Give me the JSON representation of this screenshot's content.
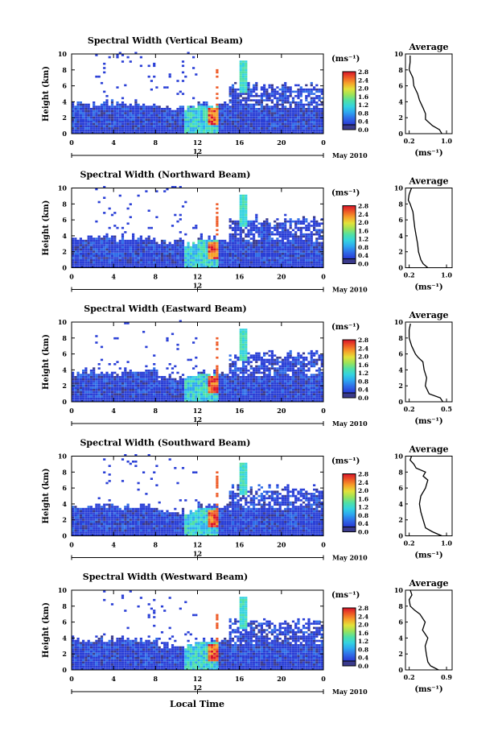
{
  "figure": {
    "xlabel": "Local Time",
    "date_label": "May 2010",
    "time_ticks": [
      "0",
      "4",
      "8",
      "12",
      "16",
      "20",
      "0"
    ],
    "day_label": "12",
    "height_ticks": [
      "0",
      "2",
      "4",
      "6",
      "8",
      "10"
    ],
    "ylabel": "Height (km)",
    "colorbar_unit": "(ms⁻¹)",
    "colorbar_ticks": [
      "0.0",
      "0.4",
      "0.8",
      "1.2",
      "1.6",
      "2.0",
      "2.4",
      "2.8"
    ],
    "avg_title": "Average",
    "avg_xlabel": "(ms⁻¹)",
    "colors": {
      "colorbar": [
        "#3a3a8c",
        "#2a3fd6",
        "#2f6ee8",
        "#2ea7f0",
        "#34d3e0",
        "#4fe0a6",
        "#9ae35a",
        "#e2e23a",
        "#f6a22a",
        "#ee5a26",
        "#d8142a"
      ],
      "background": "#ffffff"
    }
  },
  "panels": [
    {
      "title": "Spectral Width (Vertical Beam)",
      "avg_ticks": [
        "0.2",
        "1.0"
      ]
    },
    {
      "title": "Spectral Width (Northward Beam)",
      "avg_ticks": [
        "0.2",
        "1.0"
      ]
    },
    {
      "title": "Spectral Width (Eastward Beam)",
      "avg_ticks": [
        "0.2",
        "0.5"
      ]
    },
    {
      "title": "Spectral Width (Southward Beam)",
      "avg_ticks": [
        "0.2",
        "1.0"
      ]
    },
    {
      "title": "Spectral Width (Westward Beam)",
      "avg_ticks": [
        "0.2",
        "0.9"
      ]
    }
  ],
  "chart_data": [
    {
      "type": "heatmap",
      "title": "Spectral Width (Vertical Beam)",
      "x_label": "Local Time",
      "y_label": "Height (km)",
      "xlim": [
        0,
        24
      ],
      "ylim": [
        0,
        10
      ],
      "colorbar": {
        "range": [
          0.0,
          2.8
        ],
        "unit": "ms-1"
      }
    },
    {
      "type": "line",
      "title": "Average",
      "y_label": "Height (km)",
      "xlim": [
        0.2,
        1.0
      ],
      "ylim": [
        0,
        10
      ],
      "x": [
        0.9,
        0.85,
        0.7,
        0.55,
        0.55,
        0.5,
        0.42,
        0.38,
        0.3,
        0.28,
        0.2,
        0.22,
        0.22
      ],
      "y": [
        0,
        0.5,
        1,
        1.8,
        2.5,
        3.2,
        4.2,
        5,
        6,
        7,
        8,
        9,
        9.8
      ]
    },
    {
      "type": "heatmap",
      "title": "Spectral Width (Northward Beam)",
      "x_label": "Local Time",
      "y_label": "Height (km)",
      "xlim": [
        0,
        24
      ],
      "ylim": [
        0,
        10
      ],
      "colorbar": {
        "range": [
          0.0,
          2.8
        ],
        "unit": "ms-1"
      }
    },
    {
      "type": "line",
      "title": "Average",
      "y_label": "Height (km)",
      "xlim": [
        0.2,
        1.0
      ],
      "ylim": [
        0,
        10
      ],
      "x": [
        0.6,
        0.5,
        0.45,
        0.4,
        0.38,
        0.35,
        0.32,
        0.3,
        0.28,
        0.22,
        0.18,
        0.2,
        0.25
      ],
      "y": [
        0,
        0.5,
        1,
        2,
        3,
        4,
        5,
        6,
        7,
        8,
        8.5,
        9.2,
        10
      ]
    },
    {
      "type": "heatmap",
      "title": "Spectral Width (Eastward Beam)",
      "x_label": "Local Time",
      "y_label": "Height (km)",
      "xlim": [
        0,
        24
      ],
      "ylim": [
        0,
        10
      ],
      "colorbar": {
        "range": [
          0.0,
          2.8
        ],
        "unit": "ms-1"
      }
    },
    {
      "type": "line",
      "title": "Average",
      "y_label": "Height (km)",
      "xlim": [
        0.2,
        0.5
      ],
      "ylim": [
        0,
        10
      ],
      "x": [
        0.47,
        0.45,
        0.36,
        0.33,
        0.34,
        0.32,
        0.31,
        0.27,
        0.25,
        0.22,
        0.2,
        0.2,
        0.21
      ],
      "y": [
        0,
        0.5,
        1,
        2,
        3,
        4,
        5,
        5.6,
        6,
        7,
        8,
        9,
        9.8
      ]
    },
    {
      "type": "heatmap",
      "title": "Spectral Width (Southward Beam)",
      "x_label": "Local Time",
      "y_label": "Height (km)",
      "xlim": [
        0,
        24
      ],
      "ylim": [
        0,
        10
      ],
      "colorbar": {
        "range": [
          0.0,
          2.8
        ],
        "unit": "ms-1"
      }
    },
    {
      "type": "line",
      "title": "Average",
      "y_label": "Height (km)",
      "xlim": [
        0.2,
        1.0
      ],
      "ylim": [
        0,
        10
      ],
      "x": [
        0.9,
        0.7,
        0.55,
        0.5,
        0.45,
        0.42,
        0.45,
        0.55,
        0.6,
        0.5,
        0.55,
        0.35,
        0.3,
        0.22,
        0.25
      ],
      "y": [
        0,
        0.5,
        1,
        2,
        3,
        4,
        5,
        6,
        7,
        7.5,
        8,
        8.5,
        9,
        9.5,
        10
      ]
    },
    {
      "type": "heatmap",
      "title": "Spectral Width (Westward Beam)",
      "x_label": "Local Time",
      "y_label": "Height (km)",
      "xlim": [
        0,
        24
      ],
      "ylim": [
        0,
        10
      ],
      "colorbar": {
        "range": [
          0.0,
          2.8
        ],
        "unit": "ms-1"
      }
    },
    {
      "type": "line",
      "title": "Average",
      "y_label": "Height (km)",
      "xlim": [
        0.2,
        0.9
      ],
      "ylim": [
        0,
        10
      ],
      "x": [
        0.75,
        0.6,
        0.55,
        0.52,
        0.5,
        0.55,
        0.45,
        0.5,
        0.4,
        0.3,
        0.22,
        0.2,
        0.25,
        0.22
      ],
      "y": [
        0,
        0.5,
        1,
        2,
        3,
        4,
        5,
        6,
        7,
        7.5,
        8,
        8.8,
        9.4,
        10
      ]
    }
  ]
}
